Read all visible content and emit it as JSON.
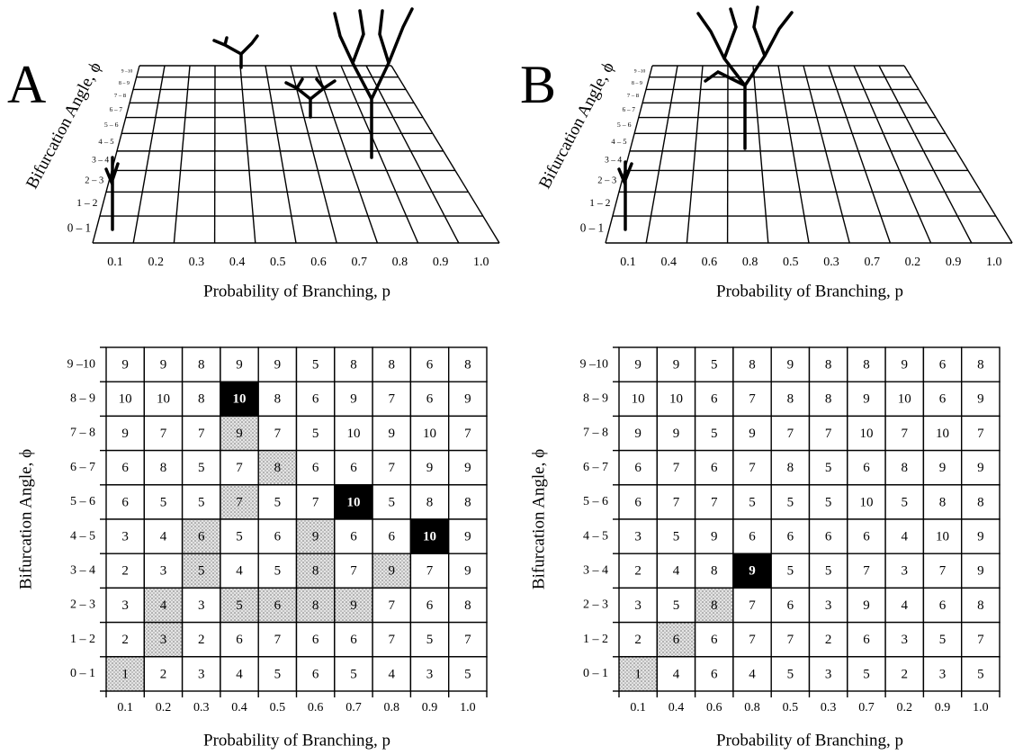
{
  "panels": [
    {
      "letter": "A",
      "y_axis_title": "Bifurcation Angle, ϕ",
      "x_axis_title": "Probability of Branching, p",
      "y_labels": [
        "9 –10",
        "8 – 9",
        "7 – 8",
        "6 – 7",
        "5 – 6",
        "4 – 5",
        "3 – 4",
        "2 – 3",
        "1 – 2",
        "0 – 1"
      ],
      "x_labels": [
        "0.1",
        "0.2",
        "0.3",
        "0.4",
        "0.5",
        "0.6",
        "0.7",
        "0.8",
        "0.9",
        "1.0"
      ],
      "rows": [
        [
          9,
          9,
          8,
          9,
          9,
          5,
          8,
          8,
          6,
          8
        ],
        [
          10,
          10,
          8,
          10,
          8,
          6,
          9,
          7,
          6,
          9
        ],
        [
          9,
          7,
          7,
          9,
          7,
          5,
          10,
          9,
          10,
          7
        ],
        [
          6,
          8,
          5,
          7,
          8,
          6,
          6,
          7,
          9,
          9
        ],
        [
          6,
          5,
          5,
          7,
          5,
          7,
          10,
          5,
          8,
          8
        ],
        [
          3,
          4,
          6,
          5,
          6,
          9,
          6,
          6,
          10,
          9
        ],
        [
          2,
          3,
          5,
          4,
          5,
          8,
          7,
          9,
          7,
          9
        ],
        [
          3,
          4,
          3,
          5,
          6,
          8,
          9,
          7,
          6,
          8
        ],
        [
          2,
          3,
          2,
          6,
          7,
          6,
          6,
          7,
          5,
          7
        ],
        [
          1,
          2,
          3,
          4,
          5,
          6,
          5,
          4,
          3,
          5
        ]
      ],
      "dark_cells": [
        [
          1,
          3
        ],
        [
          4,
          6
        ],
        [
          5,
          8
        ]
      ],
      "dotted_cells": [
        [
          2,
          3
        ],
        [
          3,
          4
        ],
        [
          4,
          3
        ],
        [
          5,
          2
        ],
        [
          5,
          5
        ],
        [
          6,
          2
        ],
        [
          6,
          5
        ],
        [
          6,
          7
        ],
        [
          7,
          1
        ],
        [
          7,
          3
        ],
        [
          7,
          4
        ],
        [
          7,
          5
        ],
        [
          7,
          6
        ],
        [
          8,
          1
        ],
        [
          9,
          0
        ]
      ]
    },
    {
      "letter": "B",
      "y_axis_title": "Bifurcation Angle, ϕ",
      "x_axis_title": "Probability of Branching, p",
      "y_labels": [
        "9 –10",
        "8 – 9",
        "7 – 8",
        "6 – 7",
        "5 – 6",
        "4 – 5",
        "3 – 4",
        "2 – 3",
        "1 – 2",
        "0 – 1"
      ],
      "x_labels": [
        "0.1",
        "0.4",
        "0.6",
        "0.8",
        "0.5",
        "0.3",
        "0.7",
        "0.2",
        "0.9",
        "1.0"
      ],
      "rows": [
        [
          9,
          9,
          5,
          8,
          9,
          8,
          8,
          9,
          6,
          8
        ],
        [
          10,
          10,
          6,
          7,
          8,
          8,
          9,
          10,
          6,
          9
        ],
        [
          9,
          9,
          5,
          9,
          7,
          7,
          10,
          7,
          10,
          7
        ],
        [
          6,
          7,
          6,
          7,
          8,
          5,
          6,
          8,
          9,
          9
        ],
        [
          6,
          7,
          7,
          5,
          5,
          5,
          10,
          5,
          8,
          8
        ],
        [
          3,
          5,
          9,
          6,
          6,
          6,
          6,
          4,
          10,
          9
        ],
        [
          2,
          4,
          8,
          9,
          5,
          5,
          7,
          3,
          7,
          9
        ],
        [
          3,
          5,
          8,
          7,
          6,
          3,
          9,
          4,
          6,
          8
        ],
        [
          2,
          6,
          6,
          7,
          7,
          2,
          6,
          3,
          5,
          7
        ],
        [
          1,
          4,
          6,
          4,
          5,
          3,
          5,
          2,
          3,
          5
        ]
      ],
      "dark_cells": [
        [
          6,
          3
        ]
      ],
      "dotted_cells": [
        [
          7,
          2
        ],
        [
          8,
          1
        ],
        [
          9,
          0
        ]
      ]
    }
  ]
}
